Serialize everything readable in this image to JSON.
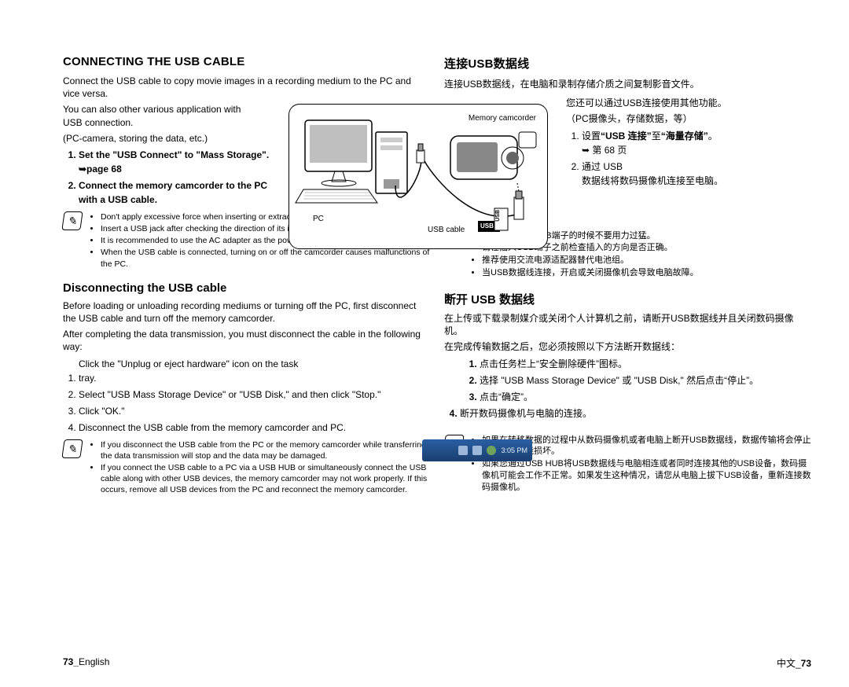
{
  "left": {
    "title": "CONNECTING THE USB CABLE",
    "p1": "Connect the USB cable to copy movie images in a recording medium to the PC and vice versa.",
    "p2": "You can also other various application with USB connection.",
    "p3": "(PC-camera, storing the data, etc.)",
    "steps1": [
      "Set the <b>\"USB Connect\"</b> to <b>\"Mass Storage\"</b>. ➥page 68",
      "Connect the memory camcorder to the PC with a USB cable."
    ],
    "note1": [
      "Don't apply excessive force when inserting or extracting a USB jack.",
      "Insert a USB jack after checking the direction of its insertion is correct.",
      "It is recommended to use the AC adapter as the power supply instead of the battery pack.",
      "When the USB cable is connected, turning on or off the camcorder causes malfunctions of the PC."
    ],
    "sub": "Disconnecting the USB cable",
    "p4": "Before loading or unloading recording mediums or turning off the PC, first disconnect the USB cable and turn off the memory camcorder.",
    "p5": "After completing the data transmission, you must disconnect the cable in the following way:",
    "steps2": [
      "Click the \"Unplug or eject hardware\" icon on the task tray.",
      "Select \"USB Mass Storage Device\" or \"USB Disk,\" and then click \"Stop.\"",
      "Click \"OK.\"",
      "Disconnect the USB cable from the memory camcorder and PC."
    ],
    "note2": [
      "If you disconnect the USB cable from the PC or the memory camcorder while transferring, the data transmission will stop and the data may be damaged.",
      "If you connect the USB cable to a PC via a USB HUB or simultaneously connect the USB cable along with other USB devices, the memory camcorder may not work properly. If this occurs, remove all USB devices from the PC and reconnect the memory camcorder."
    ]
  },
  "right": {
    "title": "连接USB数据线",
    "p1": "连接USB数据线，在电脑和录制存储介质之间复制影音文件。",
    "p2": "您还可以通过USB连接使用其他功能。",
    "p3": "（PC摄像头，存储数据，等）",
    "steps1": [
      "设置<b>“USB 连接”</b>至<b>“海量存储”</b>。<br>➥ 第 68 页",
      "通过 USB<br>数据线将数码摄像机连接至电脑。"
    ],
    "note1": [
      "在插入或拔出USB端子的时候不要用力过猛。",
      "请在插入USB端子之前检查插入的方向是否正确。",
      "推荐使用交流电源适配器替代电池组。",
      "当USB数据线连接，开启或关闭摄像机会导致电脑故障。"
    ],
    "sub": "断开 USB 数据线",
    "p4": "在上传或下载录制媒介或关闭个人计算机之前，请断开USB数据线并且关闭数码摄像机。",
    "p5": "在完成传输数据之后，您必须按照以下方法断开数据线：",
    "steps2": [
      "点击任务栏上“安全删除硬件”图标。",
      "选择 \"USB Mass Storage Device\" 或 \"USB Disk,\" 然后点击“停止”。",
      "点击“确定”。",
      "断开数码摄像机与电脑的连接。"
    ],
    "note2": [
      "如果在转移数据的过程中从数码摄像机或者电脑上断开USB数据线，数据传输将会停止并且数据可能损坏。",
      "如果您通过USB HUB将USB数据线与电脑相连或者同时连接其他的USB设备，数码摄像机可能会工作不正常。如果发生这种情况，请您从电脑上拔下USB设备，重新连接数码摄像机。"
    ]
  },
  "diagram": {
    "memcam": "Memory camcorder",
    "pc": "PC",
    "usbcable": "USB cable",
    "usb": "USB"
  },
  "taskbar": {
    "time": "3:05 PM"
  },
  "footer": {
    "left_page": "73_",
    "left_lang": "English",
    "right_lang": "中文_",
    "right_page": "73"
  }
}
